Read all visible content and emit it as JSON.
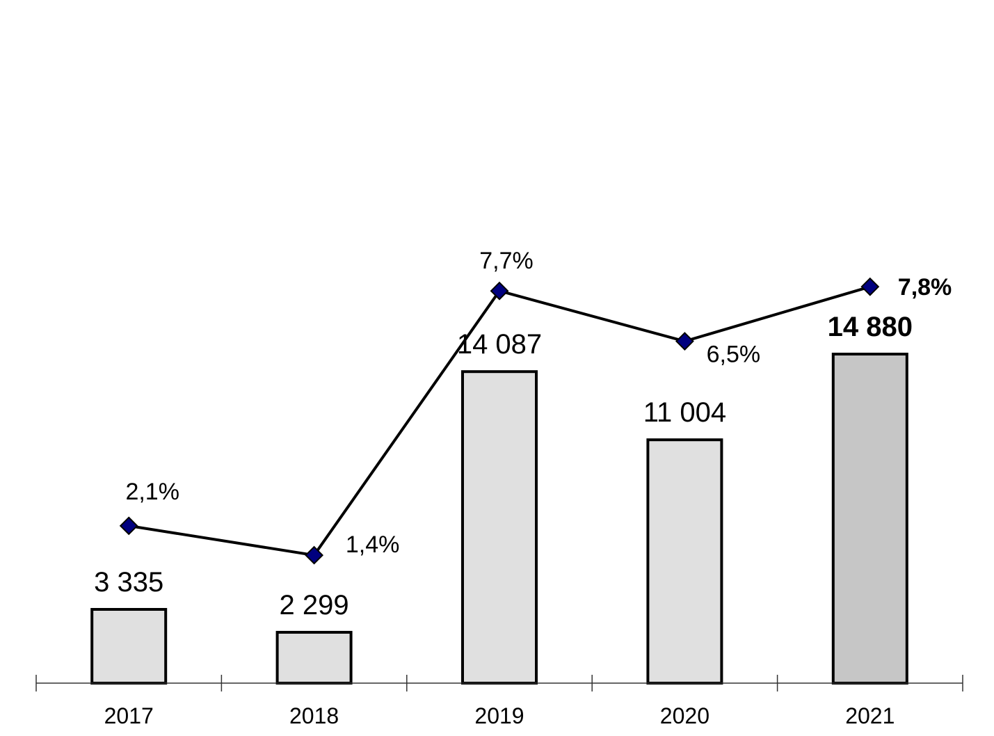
{
  "chart_data": {
    "type": "bar",
    "categories": [
      "2017",
      "2018",
      "2019",
      "2020",
      "2021"
    ],
    "series": [
      {
        "type": "bar",
        "values": [
          3335,
          2299,
          14087,
          11004,
          14880
        ],
        "labels": [
          "3 335",
          "2 299",
          "14 087",
          "11 004",
          "14 880"
        ],
        "colors": [
          "#e0e0e0",
          "#e0e0e0",
          "#e0e0e0",
          "#e0e0e0",
          "#c6c6c6"
        ]
      },
      {
        "type": "line",
        "values": [
          2.1,
          1.4,
          7.7,
          6.5,
          7.8
        ],
        "labels": [
          "2,1%",
          "1,4%",
          "7,7%",
          "6,5%",
          "7,8%"
        ],
        "marker": "diamond",
        "marker_color": "#00007f"
      }
    ],
    "highlight_index": 4,
    "bar_ylim": [
      0,
      15000
    ],
    "line_ylim": [
      0,
      10
    ],
    "title": "",
    "xlabel": "",
    "ylabel": "",
    "grid": false,
    "legend": false
  }
}
